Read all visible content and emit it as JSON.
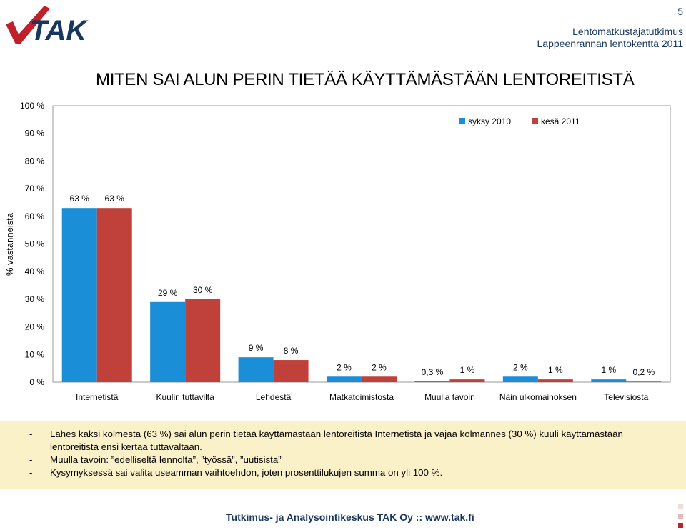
{
  "header": {
    "page_number": "5",
    "line1": "Lentomatkustajatutkimus",
    "line2": "Lappeenrannan lentokenttä 2011",
    "logo_text": "TAK"
  },
  "slide_title": "MITEN SAI ALUN PERIN TIETÄÄ KÄYTTÄMÄSTÄÄN LENTOREITISTÄ",
  "chart_data": {
    "type": "bar",
    "ylabel": "% vastanneista",
    "ylim": [
      0,
      100
    ],
    "yticks": [
      "0 %",
      "10 %",
      "20 %",
      "30 %",
      "40 %",
      "50 %",
      "60 %",
      "70 %",
      "80 %",
      "90 %",
      "100 %"
    ],
    "categories": [
      "Internetistä",
      "Kuulin tuttavilta",
      "Lehdestä",
      "Matkatoimistosta",
      "Muulla tavoin",
      "Näin ulkomainoksen",
      "Televisiosta"
    ],
    "series": [
      {
        "name": "syksy 2010",
        "color": "#1a8fd8",
        "values": [
          63,
          29,
          9,
          2,
          0.3,
          2,
          1
        ],
        "labels": [
          "63 %",
          "29 %",
          "9 %",
          "2 %",
          "0,3 %",
          "2 %",
          "1 %"
        ]
      },
      {
        "name": "kesä 2011",
        "color": "#c0403a",
        "values": [
          63,
          30,
          8,
          2,
          1,
          1,
          0.2
        ],
        "labels": [
          "63 %",
          "30 %",
          "8 %",
          "2 %",
          "1 %",
          "1 %",
          "0,2 %"
        ]
      }
    ],
    "legend_position": "top-right",
    "grid": false
  },
  "notes": [
    {
      "dash": "-",
      "text": "Lähes kaksi kolmesta (63 %) sai alun perin tietää käyttämästään lentoreitistä Internetistä ja vajaa kolmannes (30 %) kuuli käyttämästään"
    },
    {
      "dash": "",
      "text": "lentoreitistä ensi kertaa tuttavaltaan."
    },
    {
      "dash": "-",
      "text": "Muulla tavoin: ”edelliseltä lennolta”, ”työssä”, ”uutisista”"
    },
    {
      "dash": "-",
      "text": "Kysymyksessä sai valita useamman vaihtoehdon, joten prosenttilukujen summa on yli 100 %."
    },
    {
      "dash": "-",
      "text": ""
    }
  ],
  "footer": "Tutkimus- ja Analysointikeskus TAK Oy :: www.tak.fi",
  "colors": {
    "header_blue": "#17375e",
    "notes_bg": "#fbf1c9",
    "logo_red": "#c0202a"
  }
}
